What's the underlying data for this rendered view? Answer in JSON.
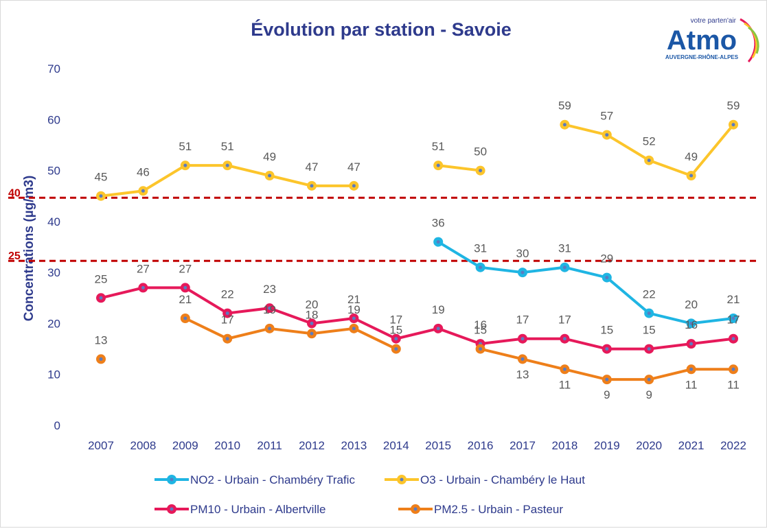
{
  "chart_data": {
    "type": "line",
    "title": "Évolution par station - Savoie",
    "y_label": "Concentrations (µg/m3)",
    "logo": {
      "text": "Atmo",
      "tagline": "votre parten'air",
      "region": "AUVERGNE-RHÔNE-ALPES"
    },
    "categories": [
      "2007",
      "2008",
      "2009",
      "2010",
      "2011",
      "2012",
      "2013",
      "2014",
      "2015",
      "2016",
      "2017",
      "2018",
      "2019",
      "2020",
      "2021",
      "2022"
    ],
    "ylim": [
      0,
      70
    ],
    "yticks": [
      0,
      10,
      20,
      30,
      40,
      50,
      60,
      70
    ],
    "y2lim": [
      -14.1,
      70.7
    ],
    "thresholds": [
      {
        "value": 40,
        "color": "#c00000",
        "axis": "y2"
      },
      {
        "value": 25,
        "color": "#c00000",
        "axis": "y2"
      }
    ],
    "series": [
      {
        "name": "NO2 - Urbain - Chambéry Trafic",
        "color": "#1fb5e3",
        "values": [
          null,
          null,
          null,
          null,
          null,
          null,
          null,
          null,
          36,
          31,
          30,
          31,
          29,
          22,
          20,
          21
        ]
      },
      {
        "name": "O3 - Urbain - Chambéry le Haut",
        "color": "#fcc52b",
        "values": [
          45,
          46,
          51,
          51,
          49,
          47,
          47,
          null,
          51,
          50,
          null,
          59,
          57,
          52,
          49,
          59
        ]
      },
      {
        "name": "PM10 - Urbain - Albertville",
        "color": "#e6195a",
        "values": [
          25,
          27,
          27,
          22,
          23,
          20,
          21,
          17,
          19,
          16,
          17,
          17,
          15,
          15,
          16,
          17
        ]
      },
      {
        "name": "PM2.5 - Urbain - Pasteur",
        "color": "#ee7f1a",
        "values": [
          13,
          null,
          21,
          17,
          19,
          18,
          19,
          15,
          null,
          15,
          13,
          11,
          9,
          9,
          11,
          11
        ]
      }
    ]
  }
}
